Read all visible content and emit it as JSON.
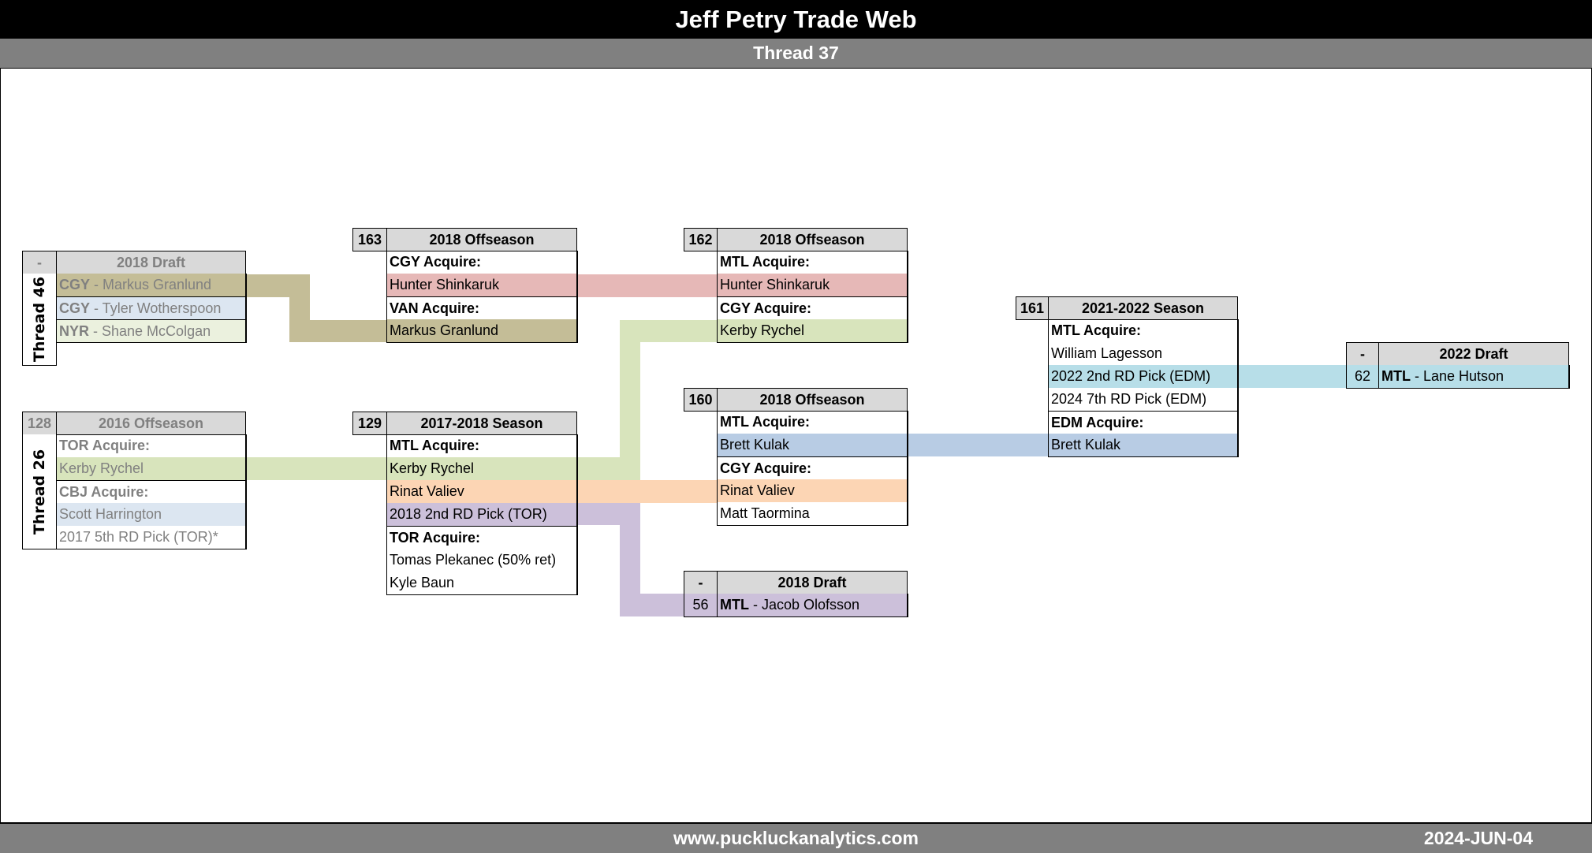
{
  "header": {
    "title": "Jeff Petry Trade Web",
    "subtitle": "Thread 37"
  },
  "footer": {
    "url": "www.puckluckanalytics.com",
    "date": "2024-JUN-04"
  },
  "colors": {
    "tan": "#c4bd97",
    "pink": "#e6b8b7",
    "green": "#d8e4bc",
    "orange": "#fcd5b4",
    "purple": "#ccc0da",
    "blue": "#b8cce4",
    "cyan": "#b7dee8",
    "light_blue": "#dce6f1",
    "light_green": "#ebf1de",
    "header_gray": "#d9d9d9",
    "faded_text": "#808080"
  },
  "boxes": [
    {
      "id": "draft2018-t46",
      "number": "-",
      "title": "2018 Draft",
      "faded": true,
      "thread_label": "Thread 46",
      "rows": [
        {
          "team": "CGY",
          "text": " - Markus Granlund",
          "highlight": "tan"
        },
        {
          "team": "CGY",
          "text": " - Tyler Wotherspoon",
          "highlight": "light_blue"
        },
        {
          "team": "NYR",
          "text": " - Shane McColgan",
          "highlight": "light_green"
        }
      ]
    },
    {
      "id": "trade128",
      "number": "128",
      "title": "2016 Offseason",
      "faded": true,
      "thread_label": "Thread 26",
      "rows": [
        {
          "text": "TOR Acquire:",
          "acquire": true
        },
        {
          "text": "Kerby Rychel",
          "highlight": "green"
        },
        {
          "text": "CBJ Acquire:",
          "acquire": true
        },
        {
          "text": "Scott Harrington",
          "highlight": "light_blue"
        },
        {
          "text": "2017 5th RD Pick (TOR)*"
        }
      ]
    },
    {
      "id": "trade163",
      "number": "163",
      "title": "2018 Offseason",
      "rows": [
        {
          "text": "CGY Acquire:",
          "acquire": true
        },
        {
          "text": "Hunter Shinkaruk",
          "highlight": "pink"
        },
        {
          "text": "VAN Acquire:",
          "acquire": true
        },
        {
          "text": "Markus Granlund",
          "highlight": "tan"
        }
      ]
    },
    {
      "id": "trade129",
      "number": "129",
      "title": "2017-2018 Season",
      "rows": [
        {
          "text": "MTL Acquire:",
          "acquire": true
        },
        {
          "text": "Kerby Rychel",
          "highlight": "green"
        },
        {
          "text": "Rinat Valiev",
          "highlight": "orange"
        },
        {
          "text": "2018 2nd RD Pick (TOR)",
          "highlight": "purple"
        },
        {
          "text": "TOR Acquire:",
          "acquire": true
        },
        {
          "text": "Tomas Plekanec (50% ret)"
        },
        {
          "text": "Kyle Baun"
        }
      ]
    },
    {
      "id": "trade162",
      "number": "162",
      "title": "2018 Offseason",
      "rows": [
        {
          "text": "MTL Acquire:",
          "acquire": true
        },
        {
          "text": "Hunter Shinkaruk",
          "highlight": "pink"
        },
        {
          "text": "CGY Acquire:",
          "acquire": true
        },
        {
          "text": "Kerby Rychel",
          "highlight": "green"
        }
      ]
    },
    {
      "id": "trade160",
      "number": "160",
      "title": "2018 Offseason",
      "rows": [
        {
          "text": "MTL Acquire:",
          "acquire": true
        },
        {
          "text": "Brett Kulak",
          "highlight": "blue"
        },
        {
          "text": "CGY Acquire:",
          "acquire": true
        },
        {
          "text": "Rinat Valiev",
          "highlight": "orange"
        },
        {
          "text": "Matt Taormina"
        }
      ]
    },
    {
      "id": "draft2018",
      "number": "-",
      "title": "2018 Draft",
      "rows": [
        {
          "pick": "56",
          "team": "MTL",
          "text": " - Jacob Olofsson",
          "highlight": "purple"
        }
      ]
    },
    {
      "id": "trade161",
      "number": "161",
      "title": "2021-2022 Season",
      "rows": [
        {
          "text": "MTL Acquire:",
          "acquire": true
        },
        {
          "text": "William Lagesson"
        },
        {
          "text": "2022 2nd RD Pick (EDM)",
          "highlight": "cyan"
        },
        {
          "text": "2024 7th RD Pick (EDM)"
        },
        {
          "text": "EDM Acquire:",
          "acquire": true
        },
        {
          "text": "Brett Kulak",
          "highlight": "blue"
        }
      ]
    },
    {
      "id": "draft2022",
      "number": "-",
      "title": "2022 Draft",
      "rows": [
        {
          "pick": "62",
          "team": "MTL",
          "text": " - Lane Hutson",
          "highlight": "cyan"
        }
      ]
    }
  ]
}
